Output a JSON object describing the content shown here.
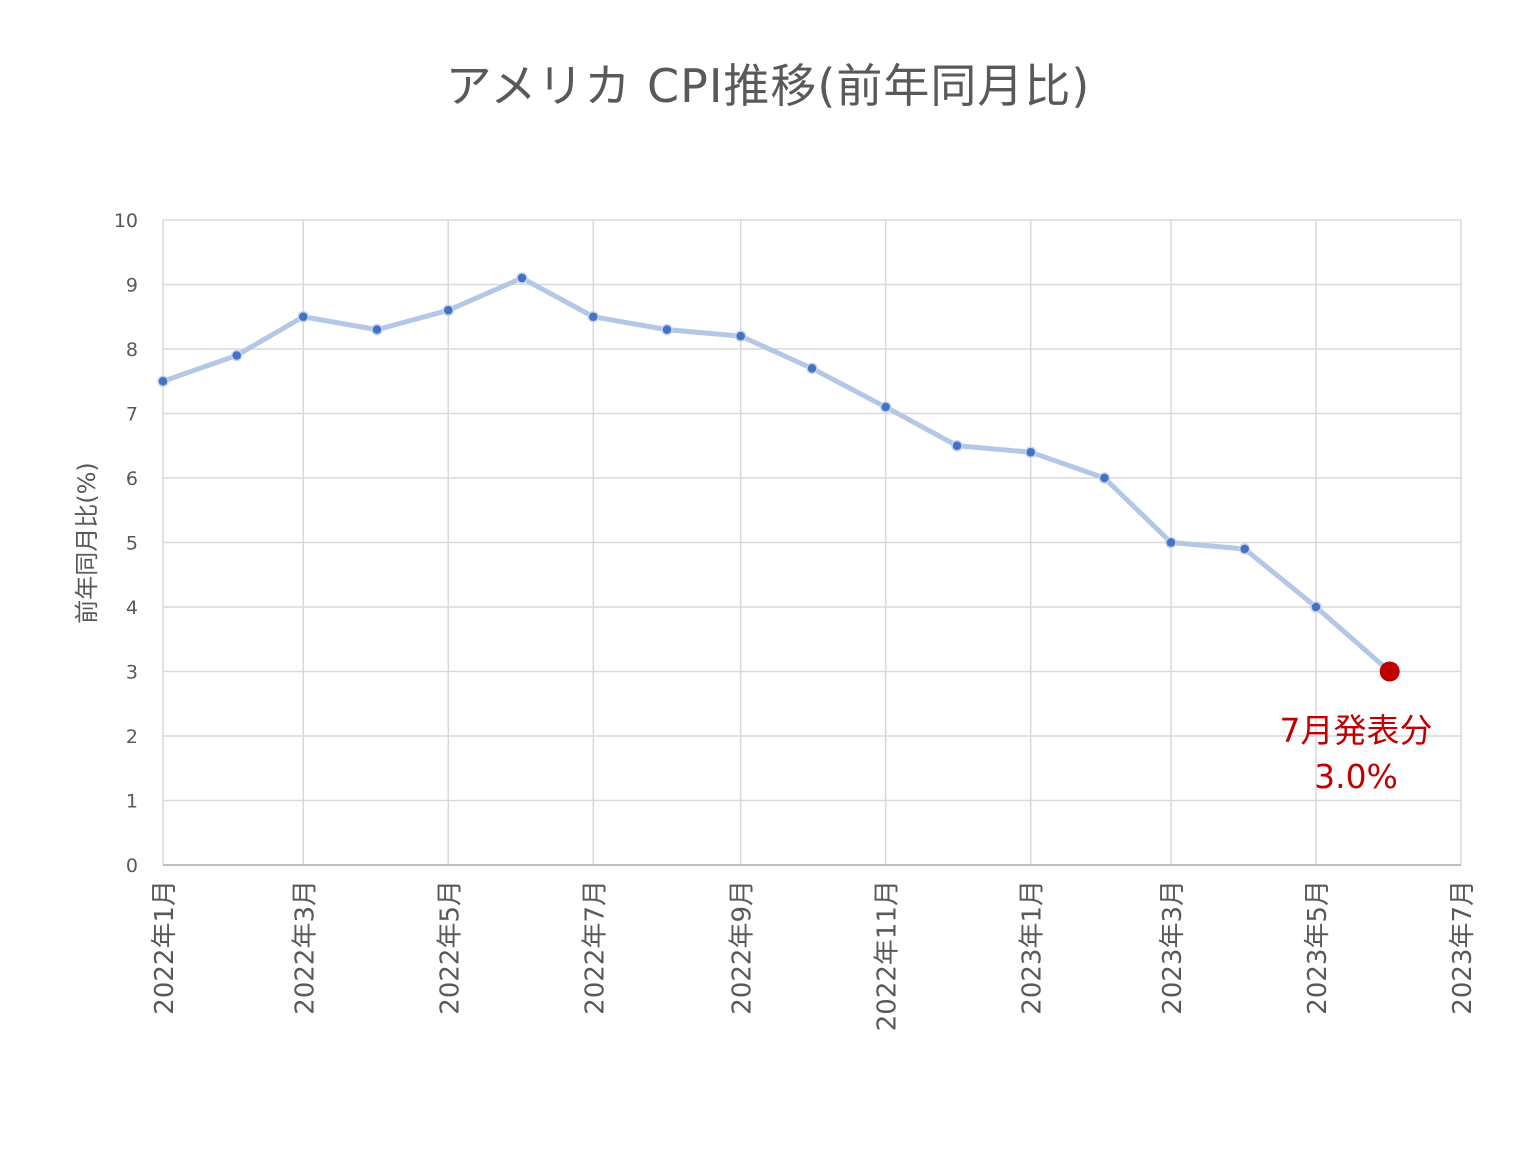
{
  "chart_data": {
    "type": "line",
    "title": "アメリカ CPI推移(前年同月比)",
    "xlabel": "",
    "ylabel": "前年同月比(%)",
    "ylim": [
      0,
      10
    ],
    "yticks": [
      "0",
      "1",
      "2",
      "3",
      "4",
      "5",
      "6",
      "7",
      "8",
      "9",
      "10"
    ],
    "xtick_labels": [
      "2022年1月",
      "2022年3月",
      "2022年5月",
      "2022年7月",
      "2022年9月",
      "2022年11月",
      "2023年1月",
      "2023年3月",
      "2023年5月",
      "2023年7月"
    ],
    "grid": true,
    "legend": null,
    "categories": [
      "2022年1月",
      "2022年2月",
      "2022年3月",
      "2022年4月",
      "2022年5月",
      "2022年6月",
      "2022年7月",
      "2022年8月",
      "2022年9月",
      "2022年10月",
      "2022年11月",
      "2022年12月",
      "2023年1月",
      "2023年2月",
      "2023年3月",
      "2023年4月",
      "2023年5月",
      "2023年6月"
    ],
    "series": [
      {
        "name": "CPI 前年同月比",
        "color": "#4472c4",
        "line_color": "#b4c7e7",
        "values": [
          7.5,
          7.9,
          8.5,
          8.3,
          8.6,
          9.1,
          8.5,
          8.3,
          8.2,
          7.7,
          7.1,
          6.5,
          6.4,
          6.0,
          5.0,
          4.9,
          4.0,
          3.0
        ]
      }
    ],
    "highlight": {
      "index": 17,
      "color": "#c00000",
      "annotation_line1": "7月発表分",
      "annotation_line2": "3.0%"
    }
  },
  "title": "アメリカ CPI推移(前年同月比)",
  "colors": {
    "marker": "#4472c4",
    "line": "#b4c7e7",
    "highlight": "#c00000",
    "grid": "#d9d9d9",
    "text": "#595959"
  }
}
